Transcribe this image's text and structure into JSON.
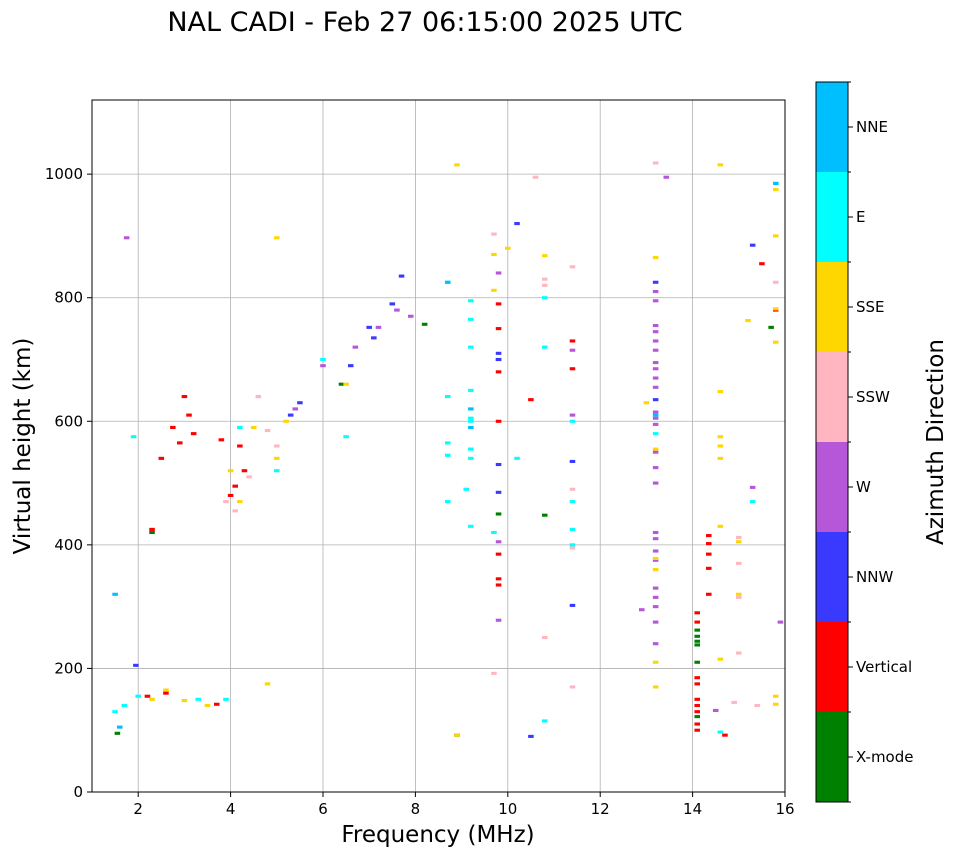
{
  "chart_data": {
    "type": "scatter",
    "title": "NAL CADI - Feb 27 06:15:00 2025 UTC",
    "xlabel": "Frequency (MHz)",
    "ylabel": "Virtual height (km)",
    "xlim": [
      1,
      16
    ],
    "ylim": [
      0,
      1120
    ],
    "xticks": [
      2,
      4,
      6,
      8,
      10,
      12,
      14,
      16
    ],
    "yticks": [
      0,
      200,
      400,
      600,
      800,
      1000
    ],
    "grid": true,
    "colorbar": {
      "label": "Azimuth Direction",
      "categories": [
        {
          "name": "X-mode",
          "color": "#008000"
        },
        {
          "name": "Vertical",
          "color": "#ff0000"
        },
        {
          "name": "NNW",
          "color": "#3a3aff"
        },
        {
          "name": "W",
          "color": "#b656d8"
        },
        {
          "name": "SSW",
          "color": "#ffb6c1"
        },
        {
          "name": "SSE",
          "color": "#ffd700"
        },
        {
          "name": "E",
          "color": "#00ffff"
        },
        {
          "name": "NNE",
          "color": "#00bfff"
        }
      ]
    },
    "series": [
      {
        "name": "X-mode",
        "cells": [
          [
            1.55,
            95
          ],
          [
            2.3,
            420
          ],
          [
            6.4,
            660
          ],
          [
            8.2,
            757
          ],
          [
            8.9,
            92
          ],
          [
            10.8,
            448
          ],
          [
            14.1,
            210
          ],
          [
            14.1,
            262
          ],
          [
            14.1,
            252
          ],
          [
            14.1,
            244
          ],
          [
            14.1,
            238
          ],
          [
            14.1,
            122
          ],
          [
            15.7,
            752
          ],
          [
            9.8,
            450
          ]
        ]
      },
      {
        "name": "Vertical",
        "cells": [
          [
            2.2,
            155
          ],
          [
            2.6,
            160
          ],
          [
            3.7,
            142
          ],
          [
            2.9,
            565
          ],
          [
            3.0,
            640
          ],
          [
            3.1,
            610
          ],
          [
            3.2,
            580
          ],
          [
            2.75,
            590
          ],
          [
            2.5,
            540
          ],
          [
            3.8,
            570
          ],
          [
            4.1,
            495
          ],
          [
            4.0,
            480
          ],
          [
            4.2,
            560
          ],
          [
            4.3,
            520
          ],
          [
            2.3,
            425
          ],
          [
            9.8,
            790
          ],
          [
            9.8,
            750
          ],
          [
            9.8,
            700
          ],
          [
            9.8,
            680
          ],
          [
            9.8,
            600
          ],
          [
            9.8,
            385
          ],
          [
            9.8,
            345
          ],
          [
            9.8,
            335
          ],
          [
            10.5,
            635
          ],
          [
            11.4,
            730
          ],
          [
            11.4,
            685
          ],
          [
            14.1,
            290
          ],
          [
            14.1,
            275
          ],
          [
            14.1,
            185
          ],
          [
            14.1,
            175
          ],
          [
            14.1,
            150
          ],
          [
            14.1,
            140
          ],
          [
            14.1,
            130
          ],
          [
            14.1,
            110
          ],
          [
            14.1,
            100
          ],
          [
            14.35,
            415
          ],
          [
            14.35,
            402
          ],
          [
            14.35,
            385
          ],
          [
            14.35,
            362
          ],
          [
            14.35,
            320
          ],
          [
            14.7,
            92
          ],
          [
            15.5,
            855
          ],
          [
            15.8,
            780
          ]
        ]
      },
      {
        "name": "NNW",
        "cells": [
          [
            1.95,
            205
          ],
          [
            5.5,
            630
          ],
          [
            5.3,
            610
          ],
          [
            7.0,
            752
          ],
          [
            7.1,
            735
          ],
          [
            7.5,
            790
          ],
          [
            7.7,
            835
          ],
          [
            6.6,
            690
          ],
          [
            9.8,
            710
          ],
          [
            9.8,
            700
          ],
          [
            9.8,
            530
          ],
          [
            9.8,
            485
          ],
          [
            10.2,
            920
          ],
          [
            10.5,
            90
          ],
          [
            11.4,
            535
          ],
          [
            11.4,
            302
          ],
          [
            13.2,
            825
          ],
          [
            13.2,
            635
          ],
          [
            15.3,
            885
          ]
        ]
      },
      {
        "name": "W",
        "cells": [
          [
            1.75,
            897
          ],
          [
            5.4,
            620
          ],
          [
            6.0,
            690
          ],
          [
            6.7,
            720
          ],
          [
            7.2,
            752
          ],
          [
            7.6,
            780
          ],
          [
            7.9,
            770
          ],
          [
            9.8,
            840
          ],
          [
            9.8,
            405
          ],
          [
            9.8,
            278
          ],
          [
            11.4,
            715
          ],
          [
            11.4,
            610
          ],
          [
            13.2,
            810
          ],
          [
            13.2,
            795
          ],
          [
            13.2,
            755
          ],
          [
            13.2,
            745
          ],
          [
            13.2,
            730
          ],
          [
            13.2,
            715
          ],
          [
            13.2,
            695
          ],
          [
            13.2,
            685
          ],
          [
            13.2,
            670
          ],
          [
            13.2,
            655
          ],
          [
            13.2,
            615
          ],
          [
            13.2,
            605
          ],
          [
            13.2,
            595
          ],
          [
            13.2,
            550
          ],
          [
            13.2,
            525
          ],
          [
            13.2,
            500
          ],
          [
            13.2,
            420
          ],
          [
            13.2,
            410
          ],
          [
            13.2,
            390
          ],
          [
            13.2,
            375
          ],
          [
            13.2,
            330
          ],
          [
            13.2,
            315
          ],
          [
            13.2,
            300
          ],
          [
            13.2,
            275
          ],
          [
            13.2,
            240
          ],
          [
            12.9,
            295
          ],
          [
            14.5,
            132
          ],
          [
            15.3,
            493
          ],
          [
            15.9,
            275
          ],
          [
            13.43,
            995
          ]
        ]
      },
      {
        "name": "SSW",
        "cells": [
          [
            3.9,
            470
          ],
          [
            4.1,
            455
          ],
          [
            4.4,
            510
          ],
          [
            4.6,
            640
          ],
          [
            4.8,
            585
          ],
          [
            5.0,
            560
          ],
          [
            10.6,
            995
          ],
          [
            10.8,
            830
          ],
          [
            10.8,
            820
          ],
          [
            10.8,
            250
          ],
          [
            11.4,
            850
          ],
          [
            11.4,
            490
          ],
          [
            11.4,
            395
          ],
          [
            11.4,
            170
          ],
          [
            9.7,
            192
          ],
          [
            9.7,
            903
          ],
          [
            13.2,
            1018
          ],
          [
            15.0,
            412
          ],
          [
            15.0,
            370
          ],
          [
            15.0,
            315
          ],
          [
            15.0,
            225
          ],
          [
            15.8,
            825
          ],
          [
            15.4,
            140
          ],
          [
            14.9,
            145
          ]
        ]
      },
      {
        "name": "SSE",
        "cells": [
          [
            2.3,
            150
          ],
          [
            2.6,
            165
          ],
          [
            3.0,
            148
          ],
          [
            3.5,
            140
          ],
          [
            4.0,
            520
          ],
          [
            4.2,
            470
          ],
          [
            4.5,
            590
          ],
          [
            5.0,
            540
          ],
          [
            5.2,
            600
          ],
          [
            6.5,
            660
          ],
          [
            4.8,
            175
          ],
          [
            5.0,
            897
          ],
          [
            8.9,
            1015
          ],
          [
            8.9,
            92
          ],
          [
            9.7,
            870
          ],
          [
            9.7,
            812
          ],
          [
            10.0,
            880
          ],
          [
            10.8,
            868
          ],
          [
            13.0,
            630
          ],
          [
            13.2,
            865
          ],
          [
            13.2,
            555
          ],
          [
            13.2,
            378
          ],
          [
            13.2,
            360
          ],
          [
            13.2,
            210
          ],
          [
            13.2,
            170
          ],
          [
            14.6,
            1015
          ],
          [
            14.6,
            648
          ],
          [
            14.6,
            575
          ],
          [
            14.6,
            560
          ],
          [
            14.6,
            540
          ],
          [
            14.6,
            430
          ],
          [
            14.6,
            215
          ],
          [
            15.0,
            405
          ],
          [
            15.0,
            320
          ],
          [
            15.2,
            763
          ],
          [
            15.8,
            900
          ],
          [
            15.8,
            782
          ],
          [
            15.8,
            728
          ],
          [
            15.8,
            975
          ],
          [
            15.8,
            155
          ],
          [
            15.8,
            142
          ]
        ]
      },
      {
        "name": "E",
        "cells": [
          [
            1.5,
            130
          ],
          [
            1.7,
            140
          ],
          [
            2.0,
            155
          ],
          [
            3.3,
            150
          ],
          [
            3.9,
            150
          ],
          [
            1.9,
            575
          ],
          [
            4.2,
            590
          ],
          [
            5.0,
            520
          ],
          [
            6.0,
            700
          ],
          [
            6.5,
            575
          ],
          [
            8.7,
            825
          ],
          [
            8.7,
            640
          ],
          [
            8.7,
            565
          ],
          [
            8.7,
            545
          ],
          [
            8.7,
            470
          ],
          [
            9.1,
            490
          ],
          [
            9.2,
            795
          ],
          [
            9.2,
            765
          ],
          [
            9.2,
            720
          ],
          [
            9.2,
            650
          ],
          [
            9.2,
            605
          ],
          [
            9.2,
            600
          ],
          [
            9.2,
            555
          ],
          [
            9.2,
            540
          ],
          [
            9.2,
            430
          ],
          [
            9.7,
            420
          ],
          [
            10.2,
            540
          ],
          [
            10.8,
            720
          ],
          [
            10.8,
            800
          ],
          [
            10.8,
            115
          ],
          [
            11.4,
            600
          ],
          [
            11.4,
            470
          ],
          [
            11.4,
            425
          ],
          [
            11.4,
            400
          ],
          [
            13.2,
            580
          ],
          [
            14.6,
            97
          ],
          [
            15.3,
            470
          ],
          [
            15.8,
            985
          ]
        ]
      },
      {
        "name": "NNE",
        "cells": [
          [
            1.6,
            105
          ],
          [
            1.5,
            320
          ],
          [
            8.7,
            825
          ],
          [
            9.2,
            620
          ],
          [
            9.2,
            590
          ],
          [
            13.2,
            610
          ],
          [
            15.8,
            985
          ]
        ]
      }
    ]
  }
}
